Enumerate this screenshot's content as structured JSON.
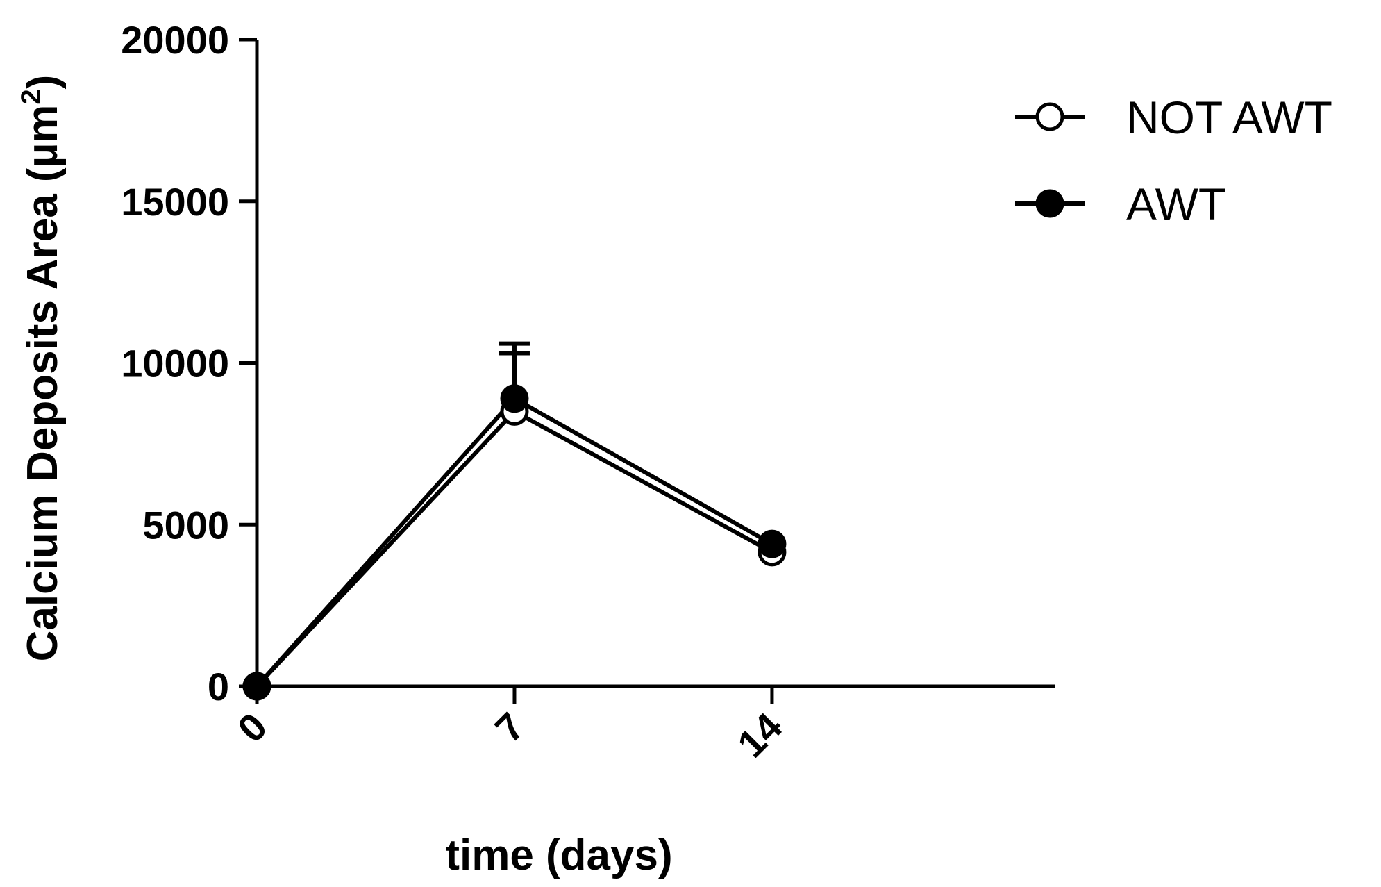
{
  "chart_data": {
    "type": "line",
    "xlabel": "time (days)",
    "ylabel": "Calcium Deposits Area (µm",
    "ylabel_superscript": "2",
    "ylabel_close": ")",
    "x": [
      0,
      7,
      14
    ],
    "x_tick_labels": [
      "0",
      "7",
      "14"
    ],
    "xlim": [
      0,
      21.7
    ],
    "ylim": [
      0,
      20000
    ],
    "y_ticks": [
      0,
      5000,
      10000,
      15000,
      20000
    ],
    "y_tick_labels": [
      "0",
      "5000",
      "10000",
      "15000",
      "20000"
    ],
    "legend_position": "top-right",
    "grid": false,
    "series": [
      {
        "name": "NOT AWT",
        "marker": "open-circle",
        "values": [
          0,
          8500,
          4150
        ],
        "error_upper": [
          0,
          10300,
          0
        ]
      },
      {
        "name": "AWT",
        "marker": "filled-circle",
        "values": [
          0,
          8900,
          4400
        ],
        "error_upper": [
          0,
          10600,
          0
        ]
      }
    ]
  }
}
